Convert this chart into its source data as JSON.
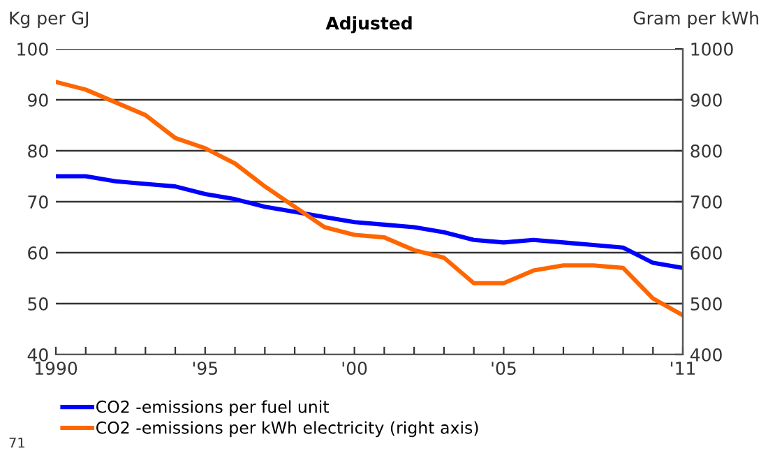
{
  "chart_data": {
    "type": "line",
    "title": "Adjusted",
    "ylabel": "Kg per GJ",
    "y2label": "Gram per kWh",
    "x": [
      1990,
      1991,
      1992,
      1993,
      1994,
      1995,
      1996,
      1997,
      1998,
      1999,
      2000,
      2001,
      2002,
      2003,
      2004,
      2005,
      2006,
      2007,
      2008,
      2009,
      2010,
      2011
    ],
    "series": [
      {
        "name": "CO2 -emissions per fuel unit",
        "color": "#0000ff",
        "values": [
          75,
          75,
          74,
          73.5,
          73,
          71.5,
          70.5,
          69,
          68,
          67,
          66,
          65.5,
          65,
          64,
          62.5,
          62,
          62.5,
          62,
          61.5,
          61,
          58,
          57
        ]
      },
      {
        "name": "CO2 -emissions per kWh electricity (right axis)",
        "color": "#ff6600",
        "axis": "y2",
        "values": [
          935,
          920,
          895,
          870,
          825,
          805,
          775,
          730,
          690,
          650,
          635,
          630,
          605,
          590,
          540,
          540,
          565,
          575,
          575,
          570,
          510,
          477
        ]
      }
    ],
    "xlim": [
      1990,
      2011
    ],
    "xticks": [
      {
        "value": 1990,
        "label": "1990"
      },
      {
        "value": 1991,
        "label": null
      },
      {
        "value": 1992,
        "label": null
      },
      {
        "value": 1993,
        "label": null
      },
      {
        "value": 1994,
        "label": null
      },
      {
        "value": 1995,
        "label": "'95"
      },
      {
        "value": 1996,
        "label": null
      },
      {
        "value": 1997,
        "label": null
      },
      {
        "value": 1998,
        "label": null
      },
      {
        "value": 1999,
        "label": null
      },
      {
        "value": 2000,
        "label": "'00"
      },
      {
        "value": 2001,
        "label": null
      },
      {
        "value": 2002,
        "label": null
      },
      {
        "value": 2003,
        "label": null
      },
      {
        "value": 2004,
        "label": null
      },
      {
        "value": 2005,
        "label": "'05"
      },
      {
        "value": 2006,
        "label": null
      },
      {
        "value": 2007,
        "label": null
      },
      {
        "value": 2008,
        "label": null
      },
      {
        "value": 2009,
        "label": null
      },
      {
        "value": 2010,
        "label": null
      },
      {
        "value": 2011,
        "label": "'11"
      }
    ],
    "ylim": [
      40,
      100
    ],
    "yticks": [
      40,
      50,
      60,
      70,
      80,
      90,
      100
    ],
    "y2lim": [
      400,
      1000
    ],
    "y2ticks": [
      400,
      500,
      600,
      700,
      800,
      900,
      1000
    ],
    "grid": "y",
    "legend": "bottom left",
    "marker": "none",
    "line_style": "solid",
    "annotations": [
      "71"
    ]
  }
}
